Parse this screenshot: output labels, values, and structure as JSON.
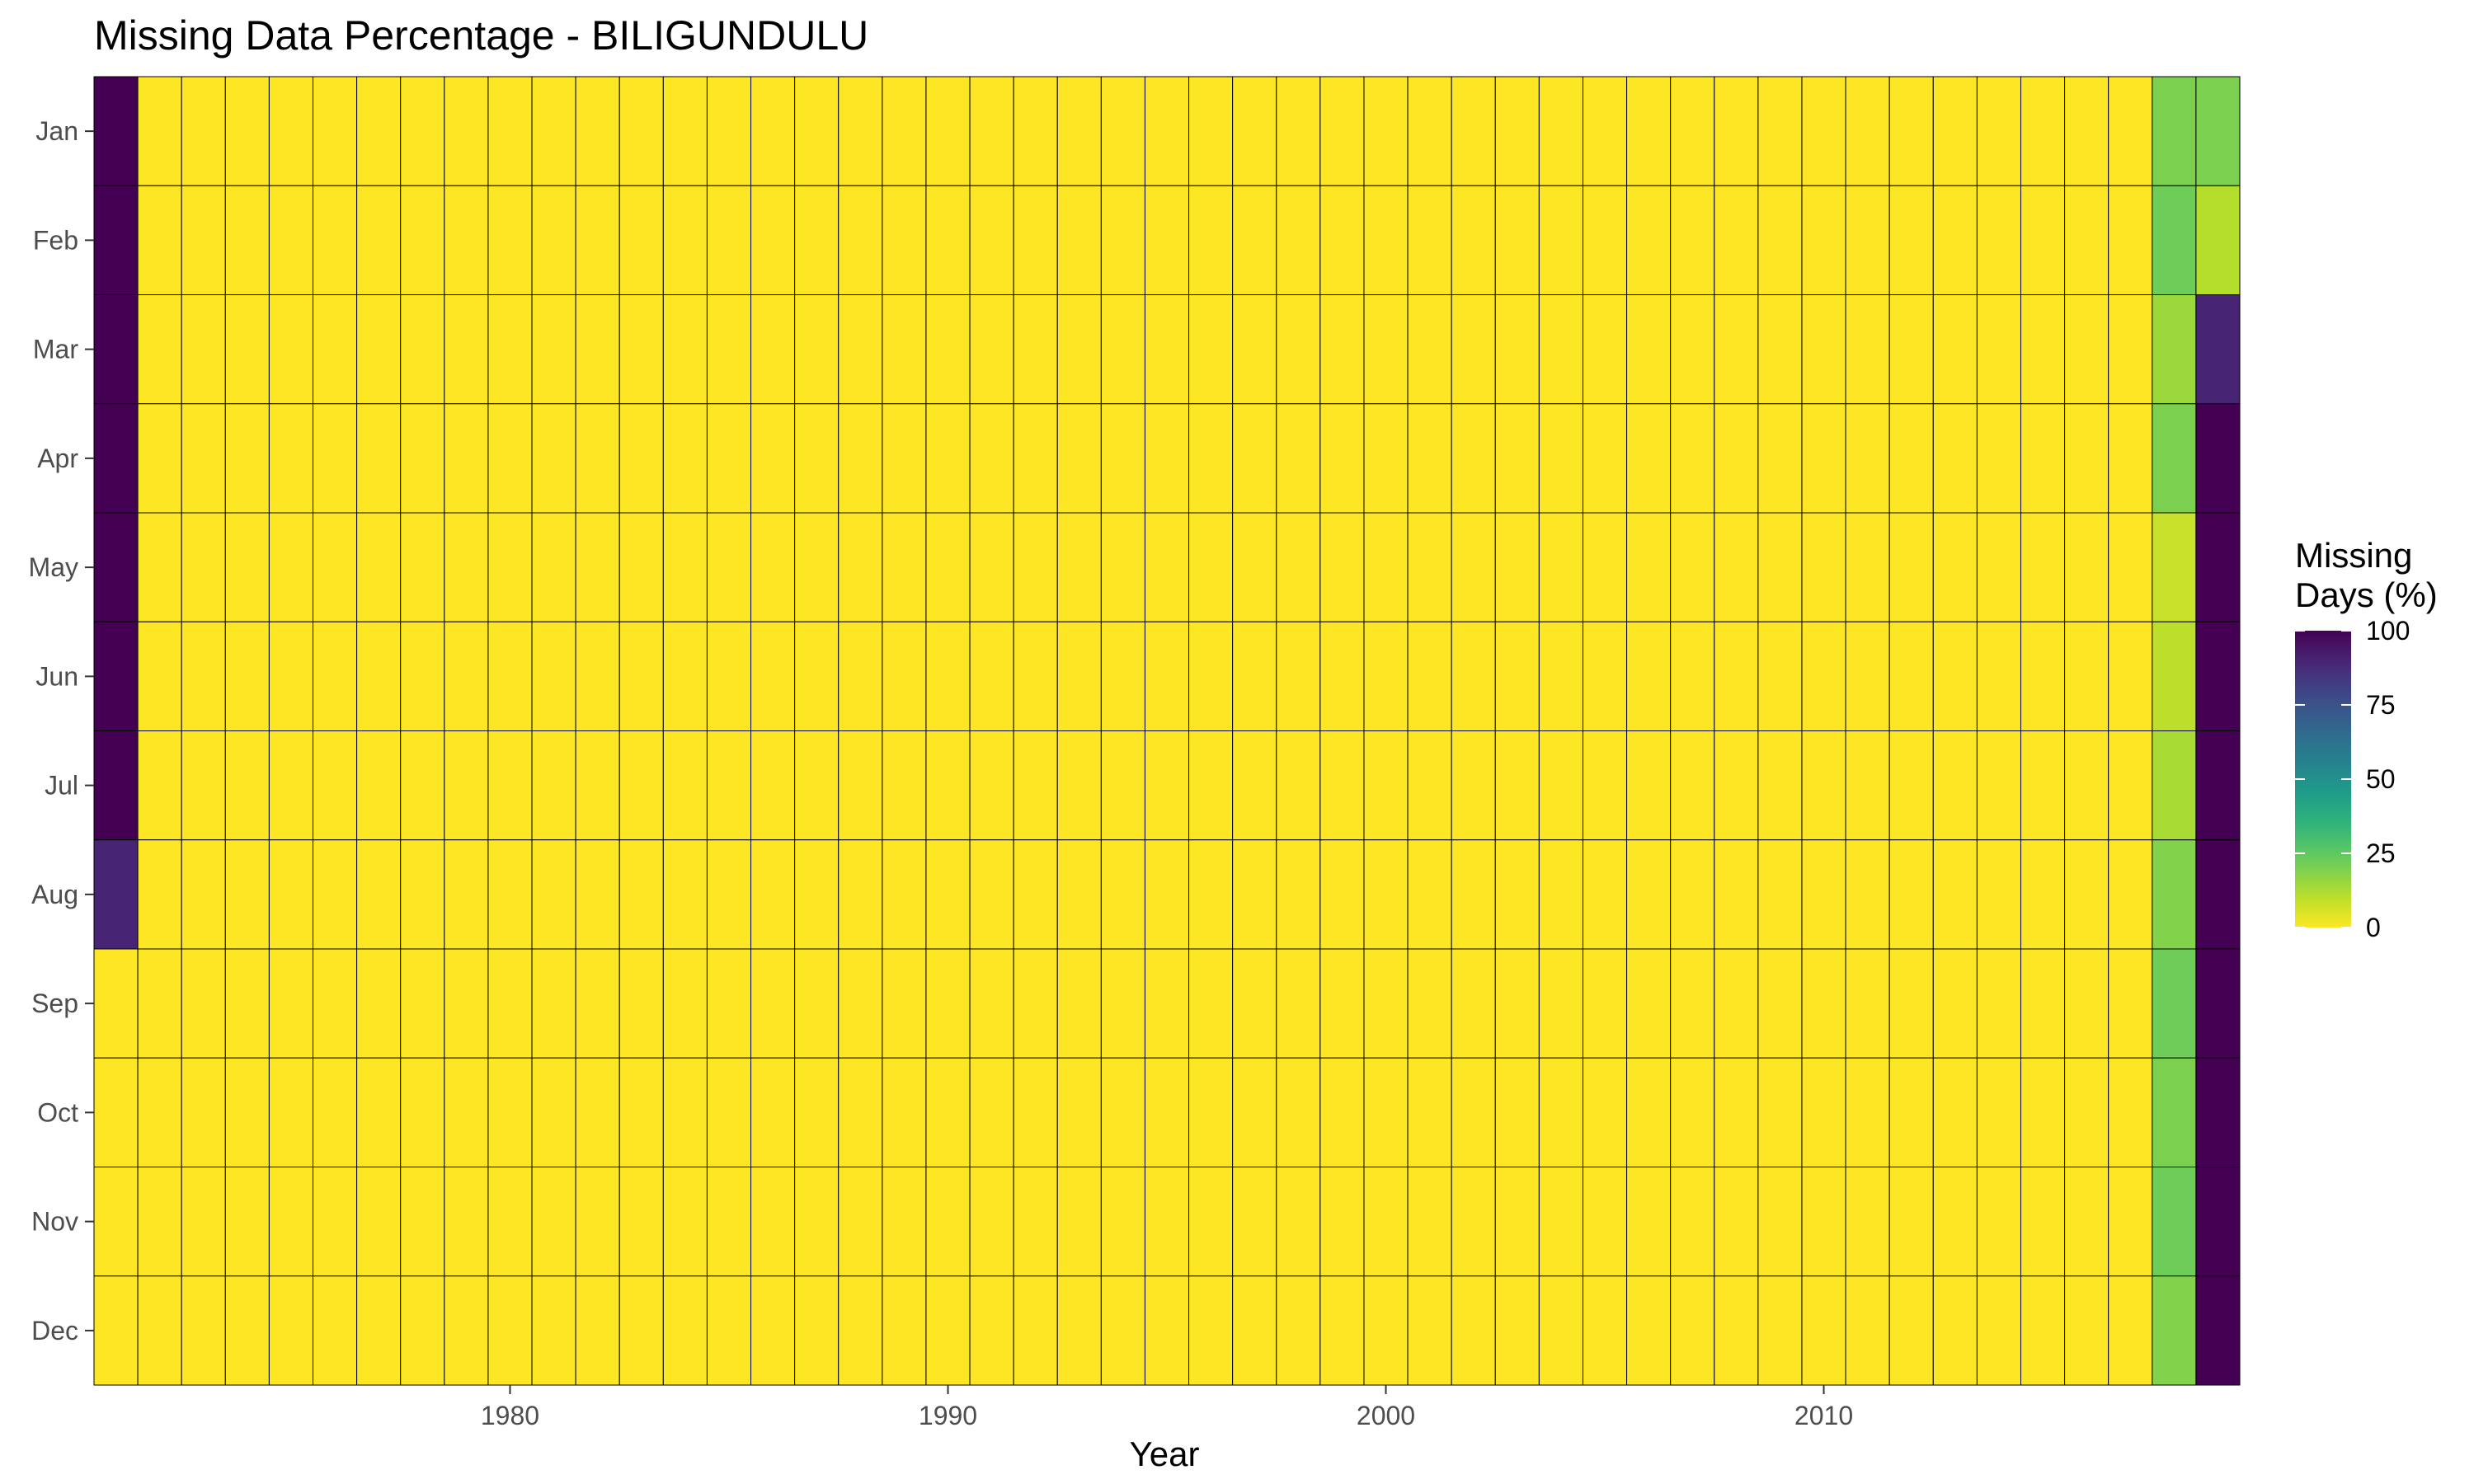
{
  "chart_data": {
    "type": "heatmap",
    "title": "Missing Data Percentage - BILIGUNDULU",
    "xlabel": "Year",
    "ylabel": "",
    "years": [
      1971,
      1972,
      1973,
      1974,
      1975,
      1976,
      1977,
      1978,
      1979,
      1980,
      1981,
      1982,
      1983,
      1984,
      1985,
      1986,
      1987,
      1988,
      1989,
      1990,
      1991,
      1992,
      1993,
      1994,
      1995,
      1996,
      1997,
      1998,
      1999,
      2000,
      2001,
      2002,
      2003,
      2004,
      2005,
      2006,
      2007,
      2008,
      2009,
      2010,
      2011,
      2012,
      2013,
      2014,
      2015,
      2016,
      2017,
      2018,
      2019
    ],
    "months": [
      "Jan",
      "Feb",
      "Mar",
      "Apr",
      "May",
      "Jun",
      "Jul",
      "Aug",
      "Sep",
      "Oct",
      "Nov",
      "Dec"
    ],
    "x_ticks": [
      "1980",
      "1990",
      "2000",
      "2010"
    ],
    "default_value": 0,
    "values_nonzero": [
      {
        "year": 1971,
        "month": "Jan",
        "value": 100
      },
      {
        "year": 1971,
        "month": "Feb",
        "value": 100
      },
      {
        "year": 1971,
        "month": "Mar",
        "value": 100
      },
      {
        "year": 1971,
        "month": "Apr",
        "value": 100
      },
      {
        "year": 1971,
        "month": "May",
        "value": 100
      },
      {
        "year": 1971,
        "month": "Jun",
        "value": 100
      },
      {
        "year": 1971,
        "month": "Jul",
        "value": 100
      },
      {
        "year": 1971,
        "month": "Aug",
        "value": 90
      },
      {
        "year": 2018,
        "month": "Jan",
        "value": 20
      },
      {
        "year": 2018,
        "month": "Feb",
        "value": 22
      },
      {
        "year": 2018,
        "month": "Mar",
        "value": 15
      },
      {
        "year": 2018,
        "month": "Apr",
        "value": 20
      },
      {
        "year": 2018,
        "month": "May",
        "value": 8
      },
      {
        "year": 2018,
        "month": "Jun",
        "value": 10
      },
      {
        "year": 2018,
        "month": "Jul",
        "value": 13
      },
      {
        "year": 2018,
        "month": "Aug",
        "value": 19
      },
      {
        "year": 2018,
        "month": "Sep",
        "value": 22
      },
      {
        "year": 2018,
        "month": "Oct",
        "value": 20
      },
      {
        "year": 2018,
        "month": "Nov",
        "value": 22
      },
      {
        "year": 2018,
        "month": "Dec",
        "value": 19
      },
      {
        "year": 2019,
        "month": "Jan",
        "value": 20
      },
      {
        "year": 2019,
        "month": "Feb",
        "value": 11
      },
      {
        "year": 2019,
        "month": "Mar",
        "value": 90
      },
      {
        "year": 2019,
        "month": "Apr",
        "value": 100
      },
      {
        "year": 2019,
        "month": "May",
        "value": 100
      },
      {
        "year": 2019,
        "month": "Jun",
        "value": 100
      },
      {
        "year": 2019,
        "month": "Jul",
        "value": 100
      },
      {
        "year": 2019,
        "month": "Aug",
        "value": 100
      },
      {
        "year": 2019,
        "month": "Sep",
        "value": 100
      },
      {
        "year": 2019,
        "month": "Oct",
        "value": 100
      },
      {
        "year": 2019,
        "month": "Nov",
        "value": 100
      },
      {
        "year": 2019,
        "month": "Dec",
        "value": 100
      }
    ],
    "color_scale": {
      "name": "viridis",
      "reversed": true,
      "domain": [
        0,
        100
      ],
      "stops": [
        "#440154",
        "#482878",
        "#3E4A89",
        "#31688E",
        "#26828E",
        "#1F9E89",
        "#35B779",
        "#6DCD59",
        "#B4DE2C",
        "#FDE725"
      ]
    },
    "legend": {
      "title_lines": [
        "Missing",
        "Days (%)"
      ],
      "ticks": [
        0,
        25,
        50,
        75,
        100
      ],
      "tick_labels": [
        "0",
        "25",
        "50",
        "75",
        "100"
      ],
      "placement": "right"
    },
    "grid": false
  }
}
